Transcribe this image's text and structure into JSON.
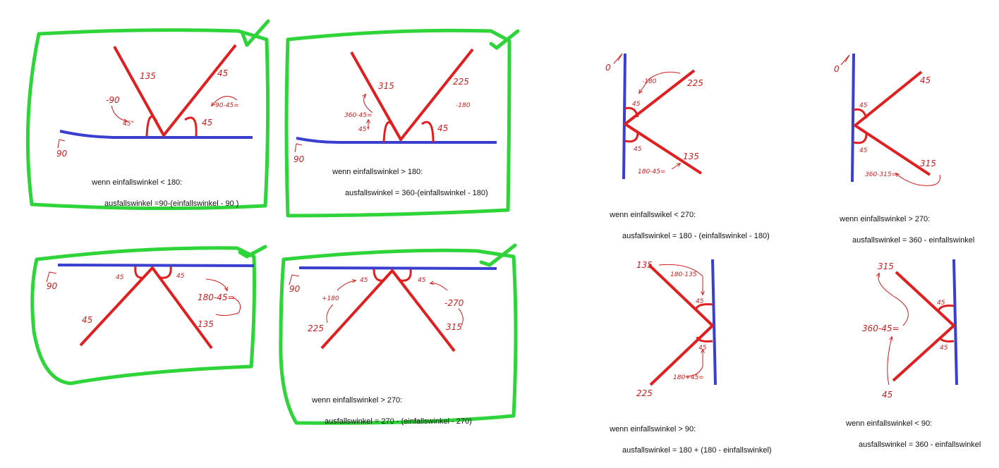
{
  "colors": {
    "frame": "#2fd43a",
    "check": "#2fd43a",
    "wall": "#3a3fd0",
    "ray": "#e02020",
    "note": "#d01c1c"
  },
  "panels": [
    {
      "id": "p1",
      "checked": true,
      "wall_label": "90",
      "labels": [
        "135",
        "45",
        "-90",
        "45°",
        "90-45=",
        "45"
      ],
      "condition": "wenn einfallswinkel < 180:",
      "formula": "ausfallswinkel =90-(einfallswinkel - 90 )"
    },
    {
      "id": "p2",
      "checked": true,
      "wall_label": "90",
      "labels": [
        "315",
        "225",
        "360-45=",
        "45°",
        "-180",
        "45"
      ],
      "condition": "wenn einfallswinkel > 180:",
      "formula": "ausfallswinkel = 360-(einfallswinkel - 180)"
    },
    {
      "id": "p3",
      "checked": false,
      "wall_label": "0",
      "labels": [
        "-180",
        "225",
        "45",
        "45",
        "135",
        "180-45="
      ],
      "condition": "wenn einfallswikel < 270:",
      "formula": "ausfallswinkel = 180 - (einfallswinkel - 180)"
    },
    {
      "id": "p4",
      "checked": false,
      "wall_label": "0",
      "labels": [
        "45",
        "45",
        "45",
        "315",
        "360-315="
      ],
      "condition": "wenn einfallswinkel > 270:",
      "formula": "ausfallswinkel = 360 - einfallswinkel"
    },
    {
      "id": "p5",
      "checked": true,
      "wall_label": "90",
      "labels": [
        "45",
        "45",
        "180-45=",
        "45",
        "135"
      ],
      "condition": "",
      "formula": ""
    },
    {
      "id": "p6",
      "checked": true,
      "wall_label": "90",
      "labels": [
        "45",
        "45",
        "+180",
        "-270",
        "225",
        "315"
      ],
      "condition": "wenn einfallswinkel > 270:",
      "formula": "ausfallswinkel = 270 - (einfallswinkel - 270)"
    },
    {
      "id": "p7",
      "checked": false,
      "wall_label": "",
      "labels": [
        "135",
        "180-135",
        "45",
        "45",
        "180+45=",
        "225"
      ],
      "condition": "wenn einfallswinkel > 90:",
      "formula": "ausfallswinkel = 180 + (180 - einfallswinkel)"
    },
    {
      "id": "p8",
      "checked": false,
      "wall_label": "",
      "labels": [
        "315",
        "45",
        "360-45=",
        "45",
        "45"
      ],
      "condition": "wenn einfallswinkel < 90:",
      "formula": "ausfallswinkel = 360 - einfallswinkel"
    }
  ]
}
